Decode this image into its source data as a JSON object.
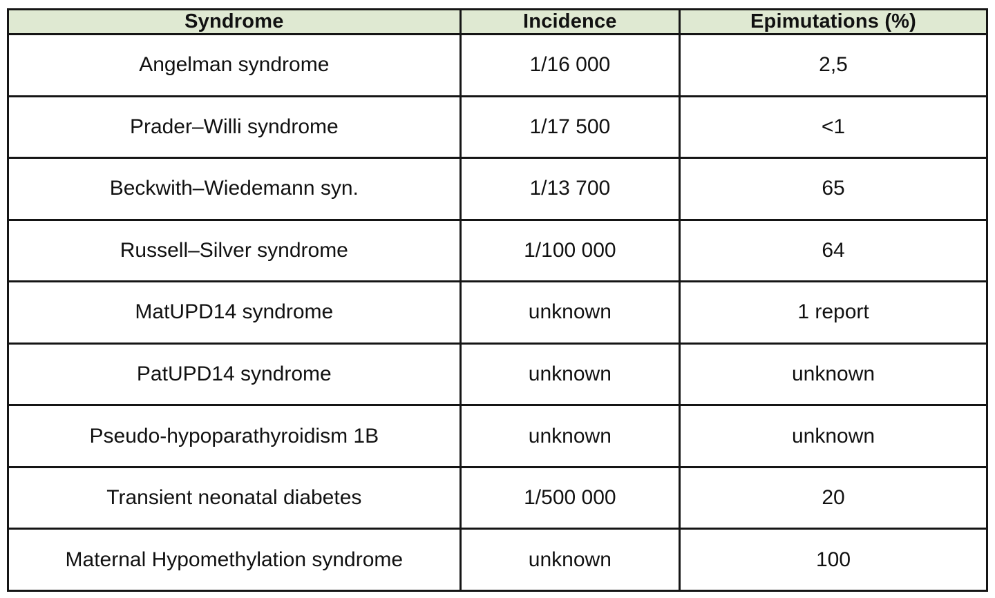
{
  "colors": {
    "header_background": "#dfe9d2",
    "border": "#151515",
    "cell_background": "#ffffff",
    "text": "#111111"
  },
  "table": {
    "columns": {
      "syndrome": "Syndrome",
      "incidence": "Incidence",
      "epimutations": "Epimutations (%)"
    },
    "rows": [
      {
        "syndrome": "Angelman syndrome",
        "incidence": "1/16 000",
        "epimutations": "2,5"
      },
      {
        "syndrome": "Prader–Willi syndrome",
        "incidence": "1/17 500",
        "epimutations": "<1"
      },
      {
        "syndrome": "Beckwith–Wiedemann syn.",
        "incidence": "1/13 700",
        "epimutations": "65"
      },
      {
        "syndrome": "Russell–Silver syndrome",
        "incidence": "1/100 000",
        "epimutations": "64"
      },
      {
        "syndrome": "MatUPD14 syndrome",
        "incidence": "unknown",
        "epimutations": "1 report"
      },
      {
        "syndrome": "PatUPD14 syndrome",
        "incidence": "unknown",
        "epimutations": "unknown"
      },
      {
        "syndrome": "Pseudo-hypoparathyroidism 1B",
        "incidence": "unknown",
        "epimutations": "unknown"
      },
      {
        "syndrome": "Transient neonatal diabetes",
        "incidence": "1/500 000",
        "epimutations": "20"
      },
      {
        "syndrome": "Maternal Hypomethylation syndrome",
        "incidence": "unknown",
        "epimutations": "100"
      }
    ]
  },
  "chart_data": {
    "type": "table",
    "title": "",
    "columns": [
      "Syndrome",
      "Incidence",
      "Epimutations (%)"
    ],
    "rows": [
      [
        "Angelman syndrome",
        "1/16 000",
        "2,5"
      ],
      [
        "Prader–Willi syndrome",
        "1/17 500",
        "<1"
      ],
      [
        "Beckwith–Wiedemann syn.",
        "1/13 700",
        "65"
      ],
      [
        "Russell–Silver syndrome",
        "1/100 000",
        "64"
      ],
      [
        "MatUPD14 syndrome",
        "unknown",
        "1 report"
      ],
      [
        "PatUPD14 syndrome",
        "unknown",
        "unknown"
      ],
      [
        "Pseudo-hypoparathyroidism 1B",
        "unknown",
        "unknown"
      ],
      [
        "Transient neonatal diabetes",
        "1/500 000",
        "20"
      ],
      [
        "Maternal Hypomethylation syndrome",
        "unknown",
        "100"
      ]
    ]
  }
}
